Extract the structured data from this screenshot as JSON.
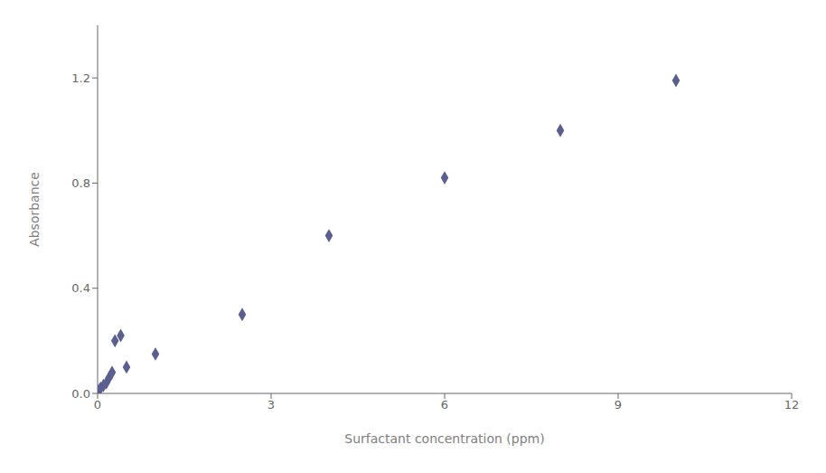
{
  "chart_data": {
    "type": "scatter",
    "x": [
      0.0,
      0.05,
      0.1,
      0.15,
      0.2,
      0.25,
      0.3,
      0.4,
      0.5,
      1.0,
      2.5,
      4.0,
      6.0,
      8.0,
      10.0
    ],
    "y": [
      0.01,
      0.02,
      0.03,
      0.04,
      0.06,
      0.08,
      0.2,
      0.22,
      0.1,
      0.15,
      0.3,
      0.6,
      0.82,
      1.0,
      1.19
    ],
    "color": "#5a5f8f",
    "marker": "diamond",
    "xlabel": "Surfactant concentration (ppm)",
    "ylabel": "Absorbance",
    "xlim": [
      0,
      12
    ],
    "ylim": [
      0,
      1.4
    ],
    "xticks": [
      0,
      3,
      6,
      9,
      12
    ],
    "yticks": [
      {
        "value": 0,
        "label": "0.0"
      },
      0.4,
      0.8,
      1.2
    ],
    "grid": false
  }
}
